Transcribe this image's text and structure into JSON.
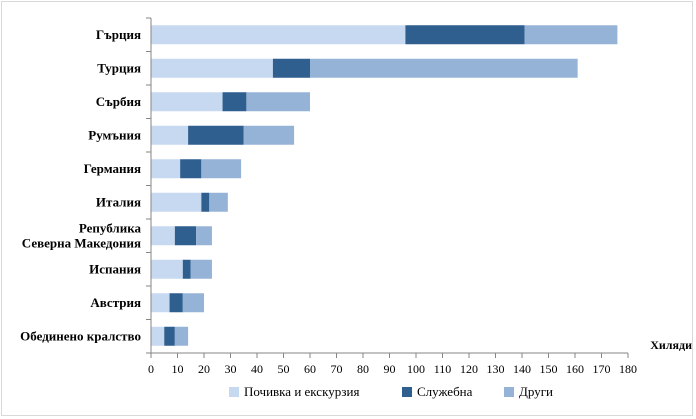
{
  "chart_data": {
    "type": "bar",
    "orientation": "horizontal",
    "stacked": true,
    "title": "",
    "xlabel": "Хиляди",
    "ylabel": "",
    "xlim": [
      0,
      180
    ],
    "x_ticks": [
      0,
      10,
      20,
      30,
      40,
      50,
      60,
      70,
      80,
      90,
      100,
      110,
      120,
      130,
      140,
      150,
      160,
      170,
      180
    ],
    "grid": false,
    "legend_position": "bottom",
    "categories": [
      [
        "Гърция"
      ],
      [
        "Турция"
      ],
      [
        "Сърбия"
      ],
      [
        "Румъния"
      ],
      [
        "Германия"
      ],
      [
        "Италия"
      ],
      [
        "Република",
        "Северна Македония"
      ],
      [
        "Испания"
      ],
      [
        "Австрия"
      ],
      [
        "Обединено кралство"
      ]
    ],
    "series": [
      {
        "name": "Почивка и екскурзия",
        "color": "#c6d9f1",
        "values": [
          96,
          46,
          27,
          14,
          11,
          19,
          9,
          12,
          7,
          5
        ]
      },
      {
        "name": "Служебна",
        "color": "#2f5f8f",
        "values": [
          45,
          14,
          9,
          21,
          8,
          3,
          8,
          3,
          5,
          4
        ]
      },
      {
        "name": "Други",
        "color": "#95b3d7",
        "values": [
          35,
          101,
          24,
          19,
          15,
          7,
          6,
          8,
          8,
          5
        ]
      }
    ]
  }
}
